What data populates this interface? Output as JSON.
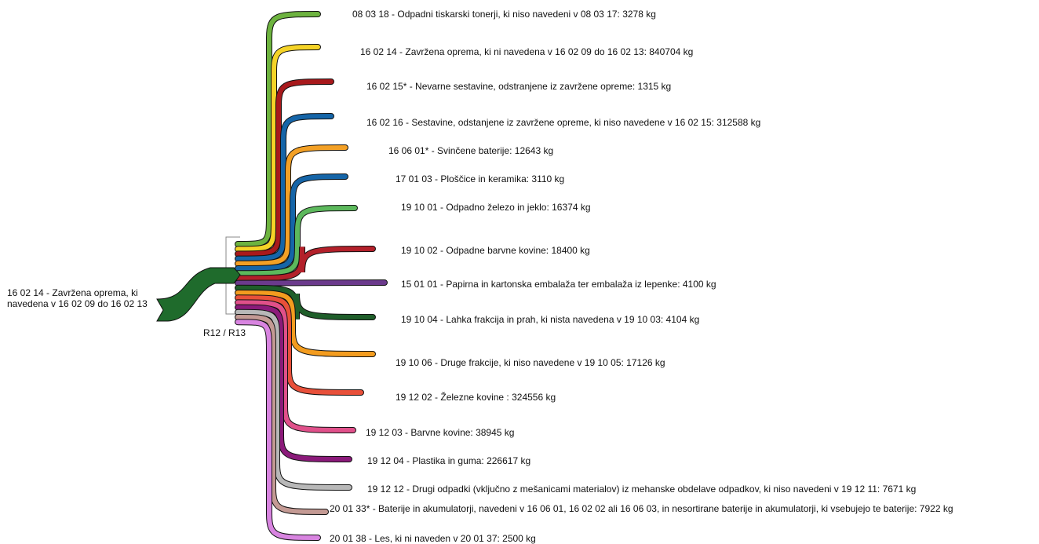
{
  "source": {
    "label": "16 02 14 -  Zavržena oprema, ki navedena v 16 02 09 do 16 02 13",
    "color": "#1f6b2c"
  },
  "process": {
    "label": "R12 / R13"
  },
  "chart_data": {
    "type": "sankey",
    "units": "kg",
    "flows": [
      {
        "code": "08 03 18",
        "description": "Odpadni tiskarski tonerji, ki niso navedeni v 08 03 17",
        "value": 3278,
        "label": "08 03 18 - Odpadni tiskarski tonerji, ki niso navedeni v 08 03 17: 3278 kg",
        "color": "#6db33f"
      },
      {
        "code": "16 02 14",
        "description": "Zavržena oprema, ki ni navedena v 16 02 09 do 16 02 13",
        "value": 840704,
        "label": "16 02 14 - Zavržena oprema, ki ni navedena v 16 02 09 do 16 02 13: 840704 kg",
        "color": "#f5d327"
      },
      {
        "code": "16 02 15*",
        "description": "Nevarne sestavine, odstranjene iz zavržene opreme",
        "value": 1315,
        "label": "16 02 15* - Nevarne sestavine, odstranjene iz zavržene opreme: 1315 kg",
        "color": "#a8191c"
      },
      {
        "code": "16 02 16",
        "description": "Sestavine, odstanjene iz zavržene opreme, ki niso navedene v 16 02 15",
        "value": 312588,
        "label": "16 02 16 - Sestavine, odstanjene iz zavržene opreme, ki niso navedene v 16 02 15: 312588 kg",
        "color": "#1565a8"
      },
      {
        "code": "16 06 01*",
        "description": "Svinčene baterije",
        "value": 12643,
        "label": "16 06 01* - Svinčene baterije: 12643 kg",
        "color": "#f3a025"
      },
      {
        "code": "17 01 03",
        "description": "Ploščice in keramika",
        "value": 3110,
        "label": "17 01 03 - Ploščice in keramika: 3110 kg",
        "color": "#1565a8"
      },
      {
        "code": "19 10 01",
        "description": "Odpadno železo in jeklo",
        "value": 16374,
        "label": "19 10 01 - Odpadno železo in jeklo: 16374 kg",
        "color": "#5cb85c"
      },
      {
        "code": "19 10 02",
        "description": "Odpadne barvne kovine",
        "value": 18400,
        "label": "19 10 02 - Odpadne barvne kovine: 18400 kg",
        "color": "#b3202a"
      },
      {
        "code": "15 01 01",
        "description": "Papirna in kartonska embalaža ter embalaža iz lepenke",
        "value": 4100,
        "label": "15 01 01 - Papirna in kartonska embalaža ter embalaža iz lepenke: 4100 kg",
        "color": "#6b3a8c"
      },
      {
        "code": "19 10 04",
        "description": "Lahka frakcija in prah, ki nista navedena v 19 10 03",
        "value": 4104,
        "label": "19 10 04 - Lahka frakcija in prah, ki nista navedena v 19 10 03: 4104 kg",
        "color": "#1f5e2a"
      },
      {
        "code": "19 10 06",
        "description": "Druge frakcije, ki niso navedene v 19 10 05",
        "value": 17126,
        "label": "19 10 06 - Druge frakcije, ki niso navedene v 19 10 05: 17126 kg",
        "color": "#f39c1f"
      },
      {
        "code": "19 12 02",
        "description": "Železne kovine",
        "value": 324556,
        "label": "19 12 02 - Železne kovine : 324556 kg",
        "color": "#e8503a"
      },
      {
        "code": "19 12 03",
        "description": "Barvne kovine",
        "value": 38945,
        "label": "19 12 03 - Barvne kovine: 38945 kg",
        "color": "#e0508a"
      },
      {
        "code": "19 12 04",
        "description": "Plastika in guma",
        "value": 226617,
        "label": "19 12 04 - Plastika in guma: 226617 kg",
        "color": "#8b1a7a"
      },
      {
        "code": "19 12 12",
        "description": "Drugi odpadki (vključno z mešanicami materialov) iz mehanske obdelave odpadkov, ki niso navedeni v 19 12 11",
        "value": 7671,
        "label": "19 12 12 - Drugi odpadki (vključno z mešanicami materialov) iz mehanske obdelave odpadkov, ki niso navedeni v 19 12 11: 7671 kg",
        "color": "#b8b8b8"
      },
      {
        "code": "20 01 33*",
        "description": "Baterije in akumulatorji, navedeni v 16 06 01, 16 02 02 ali 16 06 03, in nesortirane baterije in akumulatorji, ki vsebujejo te baterije",
        "value": 7922,
        "label": "20 01 33* - Baterije in akumulatorji, navedeni v 16 06 01, 16 02 02 ali 16 06 03, in nesortirane baterije in akumulatorji, ki vsebujejo te baterije: 7922 kg",
        "color": "#c49a94"
      },
      {
        "code": "20 01 38",
        "description": "Les, ki ni naveden v 20 01 37",
        "value": 2500,
        "label": "20 01 38 - Les, ki ni naveden v 20 01 37: 2500 kg",
        "color": "#d884e0"
      }
    ]
  }
}
